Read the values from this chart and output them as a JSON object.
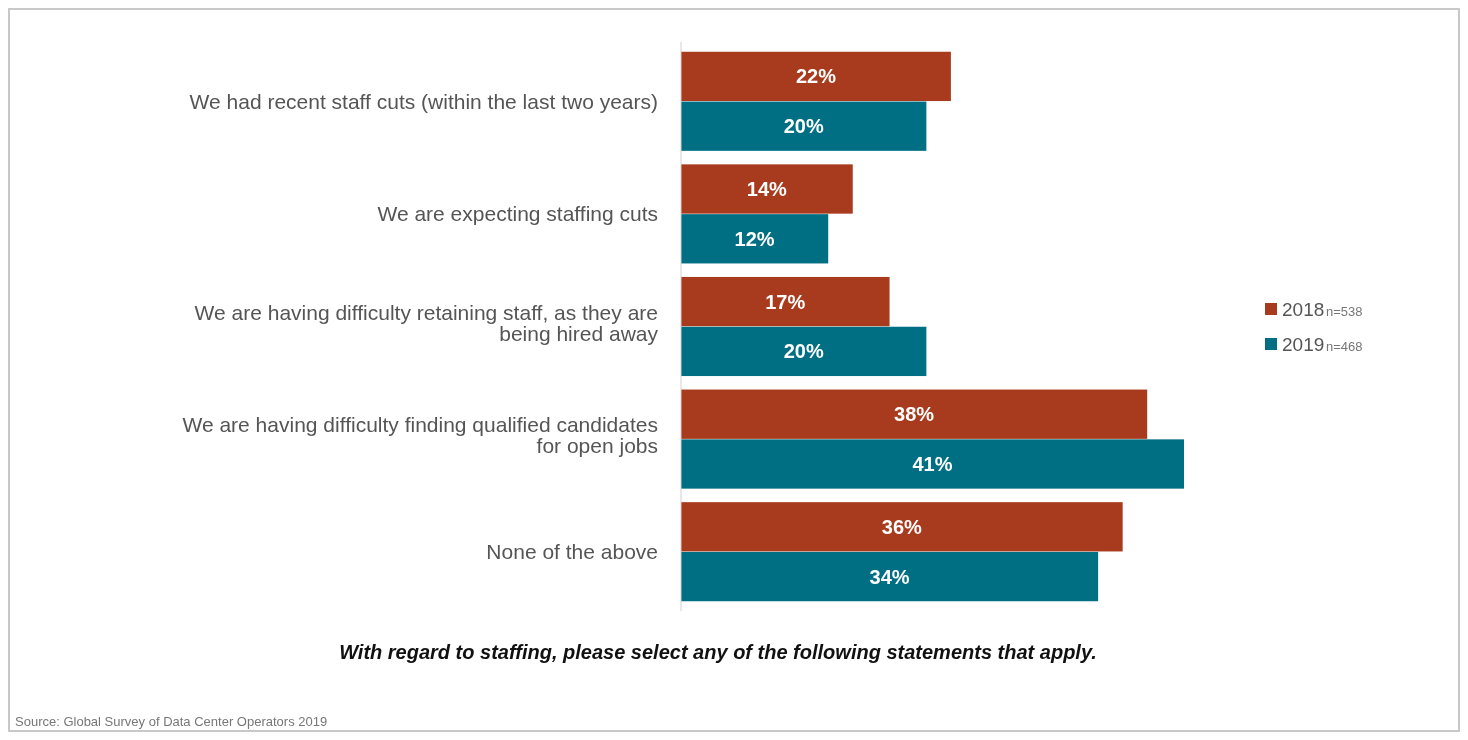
{
  "chart_data": {
    "type": "bar",
    "orientation": "horizontal",
    "title": "With regard to staffing, please select any of the following statements that apply.",
    "categories": [
      "We had recent staff cuts (within the last two years)",
      "We are expecting staffing cuts",
      "We are having difficulty retaining staff, as they are being hired away",
      "We are having difficulty finding qualified candidates for open jobs",
      "None of the above"
    ],
    "series": [
      {
        "name": "2018",
        "color": "#a83b1d",
        "values": [
          22,
          14,
          17,
          38,
          36
        ],
        "value_labels": [
          "22%",
          "14%",
          "17%",
          "38%",
          "36%"
        ]
      },
      {
        "name": "2019",
        "color": "#016f83",
        "values": [
          20,
          12,
          20,
          41,
          34
        ],
        "value_labels": [
          "20%",
          "12%",
          "20%",
          "41%",
          "34%"
        ]
      }
    ],
    "legend": "right",
    "annotations": [
      "n=538",
      "n=468",
      "Source: Global Survey of Data Center Operators 2019"
    ]
  }
}
